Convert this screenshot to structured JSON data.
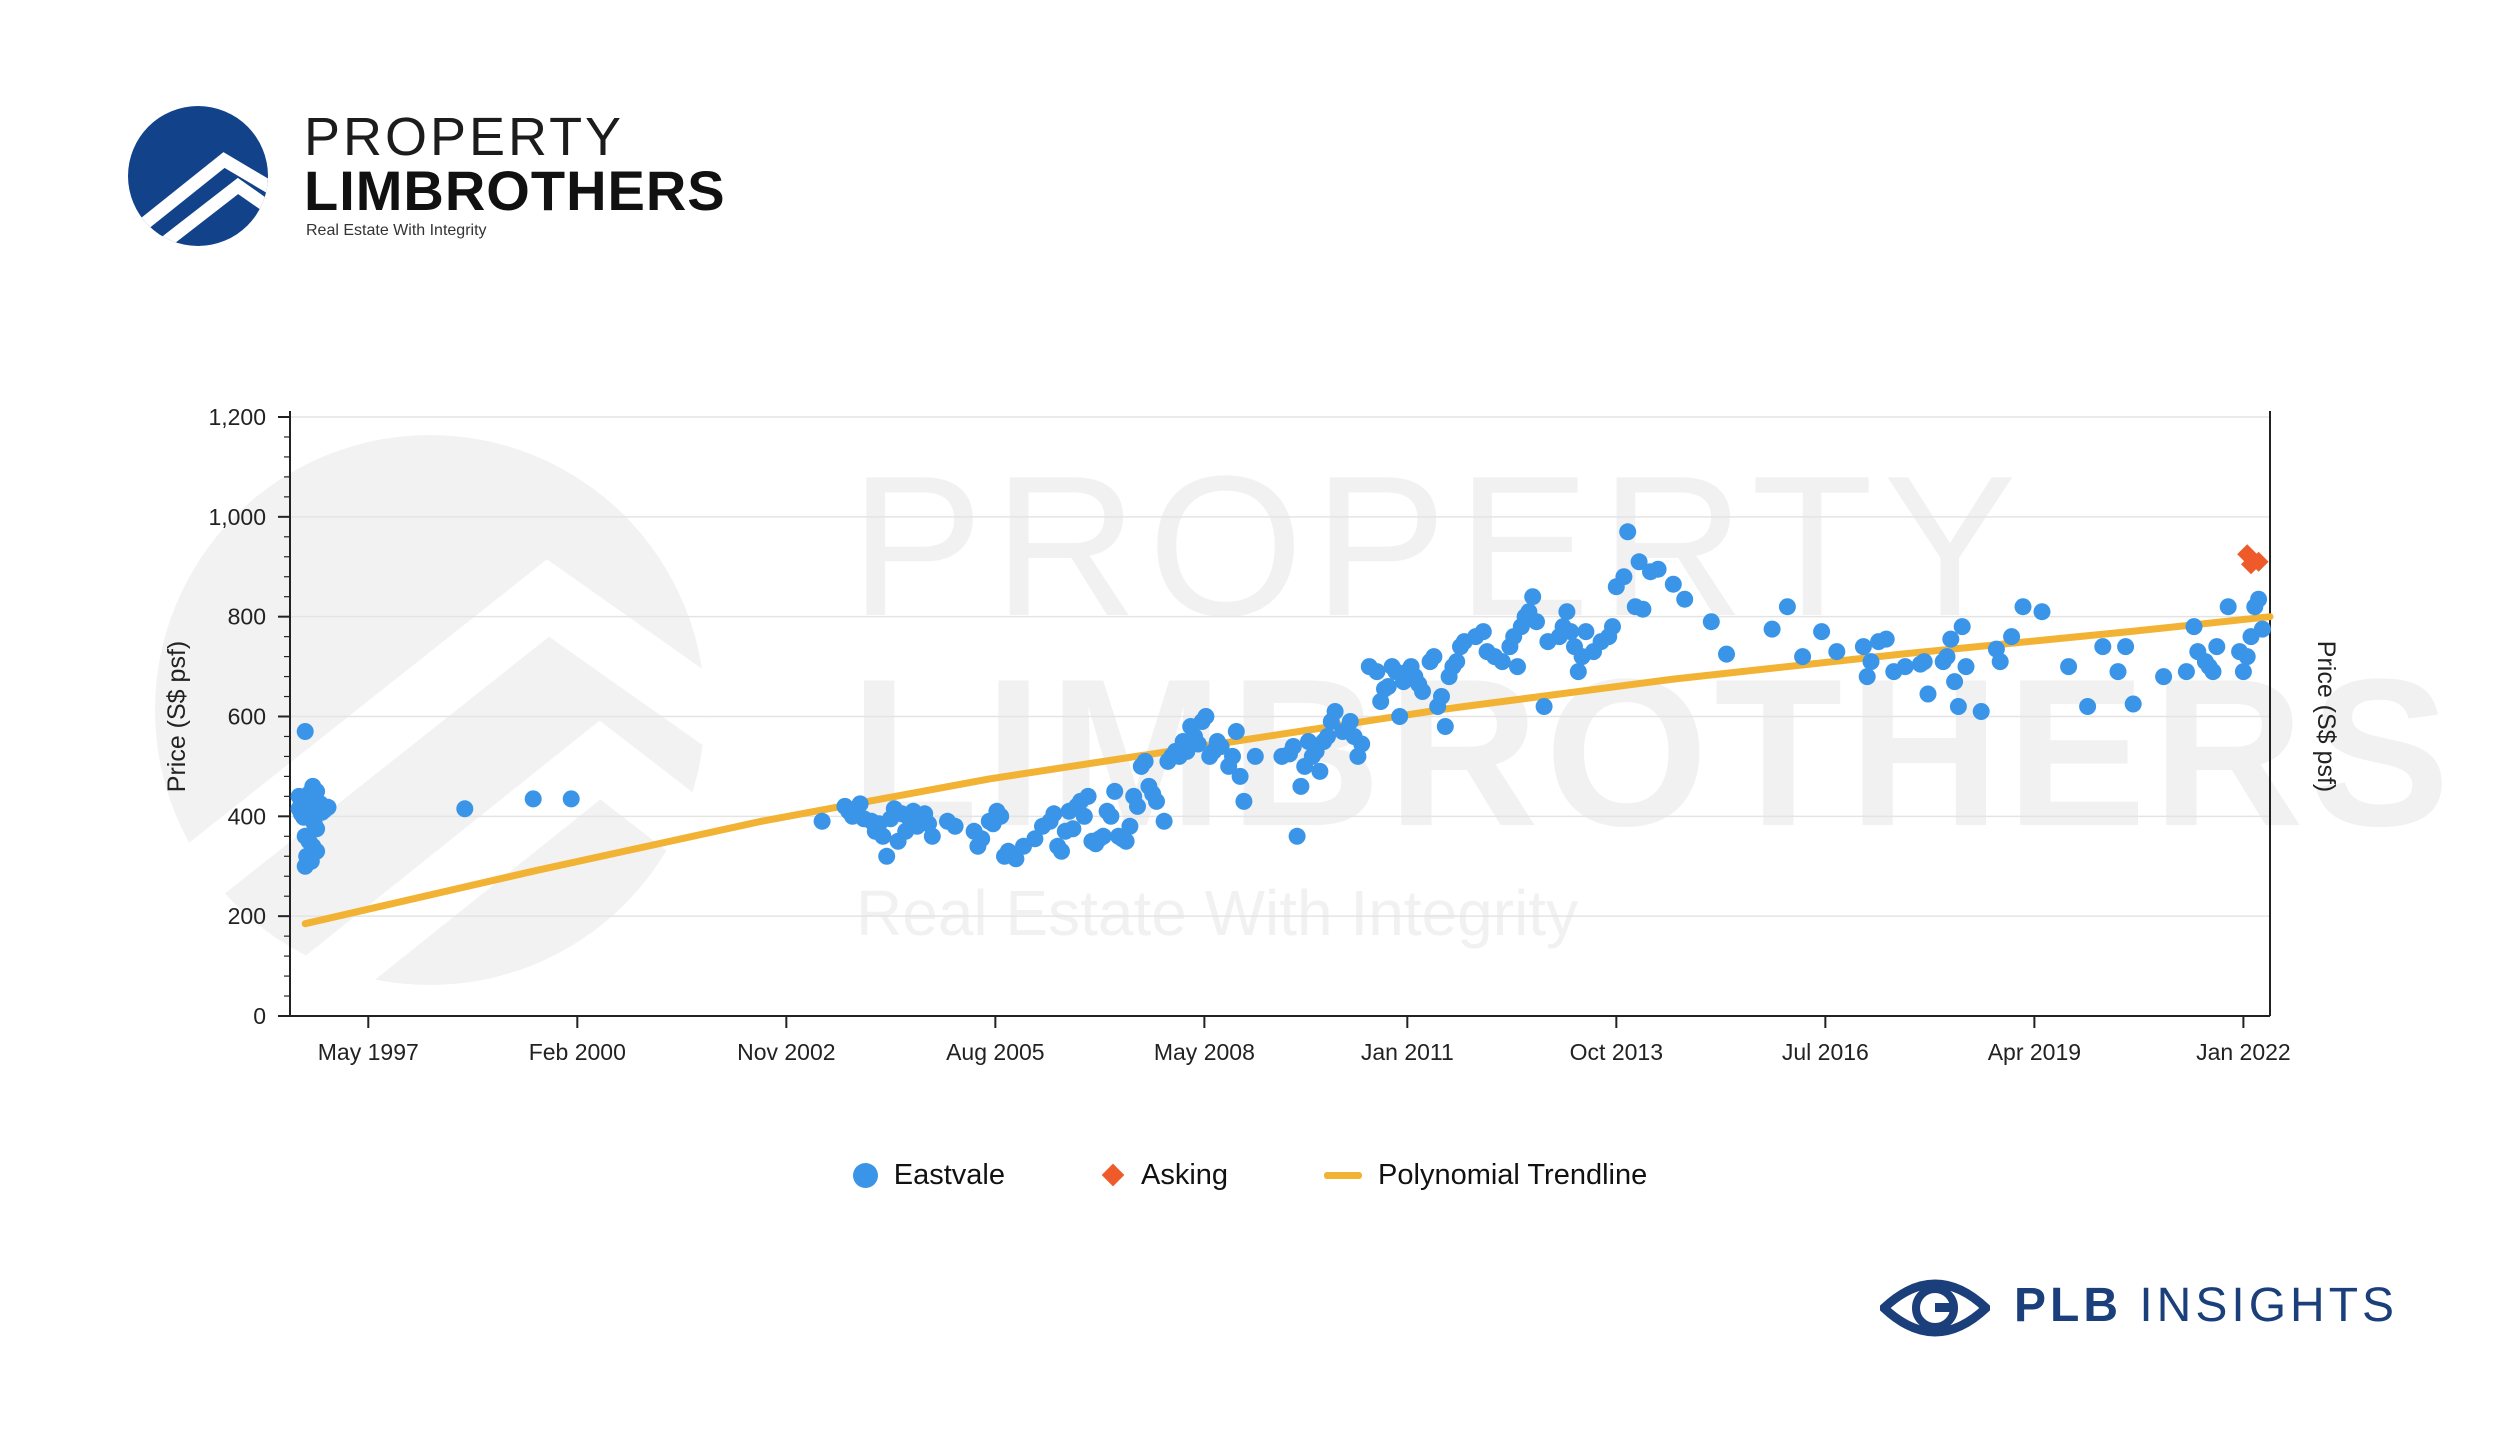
{
  "brand": {
    "line1": "PROPERTY",
    "line2": "LIMBROTHERS",
    "tagline": "Real Estate With Integrity",
    "primary_color": "#12428a"
  },
  "watermark": {
    "line1": "PROPERTY",
    "line2": "LIMBROTHERS",
    "line3": "Real Estate With Integrity"
  },
  "footer_logo": {
    "bold": "PLB",
    "rest": "INSIGHTS",
    "icon": "eye-icon",
    "color": "#1a3f7a"
  },
  "chart_data": {
    "type": "scatter",
    "title": "",
    "ylabel": "Price (S$ psf)",
    "ylabel_right": "Price (S$ psf)",
    "ylim": [
      0,
      1200
    ],
    "yticks": [
      0,
      200,
      400,
      600,
      800,
      1000,
      1200
    ],
    "ytick_labels": [
      "0",
      "200",
      "400",
      "600",
      "800",
      "1,000",
      "1,200"
    ],
    "xlim": [
      1996.3,
      2022.35
    ],
    "xtick_labels": [
      {
        "x": 1997.33,
        "label": "May 1997"
      },
      {
        "x": 2000.08,
        "label": "Feb 2000"
      },
      {
        "x": 2002.83,
        "label": "Nov 2002"
      },
      {
        "x": 2005.58,
        "label": "Aug 2005"
      },
      {
        "x": 2008.33,
        "label": "May 2008"
      },
      {
        "x": 2011.0,
        "label": "Jan 2011"
      },
      {
        "x": 2013.75,
        "label": "Oct 2013"
      },
      {
        "x": 2016.5,
        "label": "Jul 2016"
      },
      {
        "x": 2019.25,
        "label": "Apr 2019"
      },
      {
        "x": 2022.0,
        "label": "Jan 2022"
      }
    ],
    "grid": "horizontal",
    "legend_position": "bottom-center",
    "series": [
      {
        "name": "Eastvale",
        "marker": "circle",
        "color": "#3a95e8",
        "points": [
          [
            1996.5,
            570
          ],
          [
            1996.42,
            440
          ],
          [
            1996.45,
            430
          ],
          [
            1996.48,
            420
          ],
          [
            1996.52,
            410
          ],
          [
            1996.55,
            400
          ],
          [
            1996.58,
            395
          ],
          [
            1996.62,
            385
          ],
          [
            1996.65,
            375
          ],
          [
            1996.5,
            360
          ],
          [
            1996.55,
            350
          ],
          [
            1996.6,
            340
          ],
          [
            1996.65,
            330
          ],
          [
            1996.52,
            320
          ],
          [
            1996.58,
            310
          ],
          [
            1996.5,
            300
          ],
          [
            1996.45,
            405
          ],
          [
            1996.6,
            415
          ],
          [
            1996.7,
            425
          ],
          [
            1996.75,
            412
          ],
          [
            1996.8,
            418
          ],
          [
            1996.65,
            450
          ],
          [
            1996.6,
            460
          ],
          [
            1996.55,
            445
          ],
          [
            1996.48,
            398
          ],
          [
            1996.72,
            408
          ],
          [
            1996.42,
            415
          ],
          [
            1998.6,
            415
          ],
          [
            1999.5,
            435
          ],
          [
            2000.0,
            435
          ],
          [
            2003.3,
            390
          ],
          [
            2003.6,
            420
          ],
          [
            2003.65,
            410
          ],
          [
            2003.7,
            400
          ],
          [
            2003.75,
            415
          ],
          [
            2003.8,
            425
          ],
          [
            2003.85,
            395
          ],
          [
            2003.95,
            390
          ],
          [
            2004.0,
            370
          ],
          [
            2004.05,
            385
          ],
          [
            2004.1,
            360
          ],
          [
            2004.15,
            320
          ],
          [
            2004.2,
            395
          ],
          [
            2004.25,
            415
          ],
          [
            2004.3,
            350
          ],
          [
            2004.35,
            405
          ],
          [
            2004.4,
            370
          ],
          [
            2004.45,
            395
          ],
          [
            2004.5,
            410
          ],
          [
            2004.55,
            380
          ],
          [
            2004.6,
            400
          ],
          [
            2004.65,
            405
          ],
          [
            2004.7,
            385
          ],
          [
            2004.75,
            360
          ],
          [
            2004.95,
            390
          ],
          [
            2005.05,
            380
          ],
          [
            2005.3,
            370
          ],
          [
            2005.35,
            340
          ],
          [
            2005.4,
            355
          ],
          [
            2005.5,
            390
          ],
          [
            2005.55,
            385
          ],
          [
            2005.6,
            410
          ],
          [
            2005.65,
            400
          ],
          [
            2005.7,
            320
          ],
          [
            2005.75,
            330
          ],
          [
            2005.85,
            315
          ],
          [
            2005.95,
            340
          ],
          [
            2006.1,
            355
          ],
          [
            2006.2,
            380
          ],
          [
            2006.3,
            390
          ],
          [
            2006.35,
            405
          ],
          [
            2006.4,
            340
          ],
          [
            2006.45,
            330
          ],
          [
            2006.5,
            370
          ],
          [
            2006.55,
            410
          ],
          [
            2006.6,
            375
          ],
          [
            2006.65,
            420
          ],
          [
            2006.7,
            430
          ],
          [
            2006.75,
            400
          ],
          [
            2006.8,
            440
          ],
          [
            2006.85,
            350
          ],
          [
            2006.9,
            345
          ],
          [
            2006.95,
            355
          ],
          [
            2007.0,
            360
          ],
          [
            2007.05,
            410
          ],
          [
            2007.1,
            400
          ],
          [
            2007.15,
            450
          ],
          [
            2007.2,
            360
          ],
          [
            2007.25,
            355
          ],
          [
            2007.3,
            350
          ],
          [
            2007.35,
            380
          ],
          [
            2007.4,
            440
          ],
          [
            2007.45,
            420
          ],
          [
            2007.5,
            500
          ],
          [
            2007.55,
            510
          ],
          [
            2007.6,
            460
          ],
          [
            2007.65,
            445
          ],
          [
            2007.7,
            430
          ],
          [
            2007.8,
            390
          ],
          [
            2007.85,
            510
          ],
          [
            2007.9,
            520
          ],
          [
            2007.95,
            530
          ],
          [
            2008.0,
            520
          ],
          [
            2008.05,
            550
          ],
          [
            2008.1,
            530
          ],
          [
            2008.15,
            580
          ],
          [
            2008.2,
            560
          ],
          [
            2008.25,
            545
          ],
          [
            2008.3,
            590
          ],
          [
            2008.35,
            600
          ],
          [
            2008.4,
            520
          ],
          [
            2008.45,
            530
          ],
          [
            2008.5,
            550
          ],
          [
            2008.55,
            540
          ],
          [
            2008.65,
            500
          ],
          [
            2008.7,
            520
          ],
          [
            2008.75,
            570
          ],
          [
            2008.8,
            480
          ],
          [
            2008.85,
            430
          ],
          [
            2009.0,
            520
          ],
          [
            2009.35,
            520
          ],
          [
            2009.45,
            525
          ],
          [
            2009.5,
            540
          ],
          [
            2009.55,
            360
          ],
          [
            2009.6,
            460
          ],
          [
            2009.65,
            500
          ],
          [
            2009.7,
            550
          ],
          [
            2009.75,
            520
          ],
          [
            2009.8,
            530
          ],
          [
            2009.85,
            490
          ],
          [
            2009.9,
            550
          ],
          [
            2009.95,
            560
          ],
          [
            2010.0,
            590
          ],
          [
            2010.05,
            610
          ],
          [
            2010.15,
            570
          ],
          [
            2010.25,
            590
          ],
          [
            2010.3,
            560
          ],
          [
            2010.35,
            520
          ],
          [
            2010.4,
            545
          ],
          [
            2010.5,
            700
          ],
          [
            2010.6,
            690
          ],
          [
            2010.65,
            630
          ],
          [
            2010.7,
            655
          ],
          [
            2010.75,
            660
          ],
          [
            2010.8,
            700
          ],
          [
            2010.85,
            690
          ],
          [
            2010.9,
            600
          ],
          [
            2010.95,
            670
          ],
          [
            2011.0,
            690
          ],
          [
            2011.05,
            700
          ],
          [
            2011.1,
            680
          ],
          [
            2011.15,
            665
          ],
          [
            2011.2,
            650
          ],
          [
            2011.3,
            710
          ],
          [
            2011.35,
            720
          ],
          [
            2011.4,
            620
          ],
          [
            2011.45,
            640
          ],
          [
            2011.5,
            580
          ],
          [
            2011.55,
            680
          ],
          [
            2011.6,
            700
          ],
          [
            2011.65,
            710
          ],
          [
            2011.7,
            740
          ],
          [
            2011.75,
            750
          ],
          [
            2011.9,
            760
          ],
          [
            2012.0,
            770
          ],
          [
            2012.05,
            730
          ],
          [
            2012.15,
            720
          ],
          [
            2012.25,
            710
          ],
          [
            2012.35,
            740
          ],
          [
            2012.4,
            760
          ],
          [
            2012.45,
            700
          ],
          [
            2012.5,
            780
          ],
          [
            2012.55,
            800
          ],
          [
            2012.6,
            810
          ],
          [
            2012.65,
            840
          ],
          [
            2012.7,
            790
          ],
          [
            2012.8,
            620
          ],
          [
            2012.85,
            750
          ],
          [
            2013.0,
            760
          ],
          [
            2013.05,
            780
          ],
          [
            2013.1,
            810
          ],
          [
            2013.15,
            770
          ],
          [
            2013.2,
            740
          ],
          [
            2013.25,
            690
          ],
          [
            2013.3,
            720
          ],
          [
            2013.35,
            770
          ],
          [
            2013.45,
            730
          ],
          [
            2013.55,
            750
          ],
          [
            2013.65,
            760
          ],
          [
            2013.7,
            780
          ],
          [
            2013.75,
            860
          ],
          [
            2013.85,
            880
          ],
          [
            2013.9,
            970
          ],
          [
            2014.0,
            820
          ],
          [
            2014.05,
            910
          ],
          [
            2014.1,
            815
          ],
          [
            2014.2,
            890
          ],
          [
            2014.3,
            895
          ],
          [
            2014.5,
            865
          ],
          [
            2014.65,
            835
          ],
          [
            2015.0,
            790
          ],
          [
            2015.2,
            725
          ],
          [
            2015.8,
            775
          ],
          [
            2016.0,
            820
          ],
          [
            2016.2,
            720
          ],
          [
            2016.45,
            770
          ],
          [
            2016.65,
            730
          ],
          [
            2017.0,
            740
          ],
          [
            2017.05,
            680
          ],
          [
            2017.1,
            710
          ],
          [
            2017.2,
            750
          ],
          [
            2017.3,
            755
          ],
          [
            2017.4,
            690
          ],
          [
            2017.55,
            700
          ],
          [
            2017.75,
            705
          ],
          [
            2017.8,
            710
          ],
          [
            2017.85,
            645
          ],
          [
            2018.05,
            710
          ],
          [
            2018.1,
            720
          ],
          [
            2018.15,
            755
          ],
          [
            2018.2,
            670
          ],
          [
            2018.25,
            620
          ],
          [
            2018.3,
            780
          ],
          [
            2018.35,
            700
          ],
          [
            2018.55,
            610
          ],
          [
            2018.75,
            735
          ],
          [
            2018.8,
            710
          ],
          [
            2018.95,
            760
          ],
          [
            2019.1,
            820
          ],
          [
            2019.35,
            810
          ],
          [
            2019.7,
            700
          ],
          [
            2019.95,
            620
          ],
          [
            2020.15,
            740
          ],
          [
            2020.35,
            690
          ],
          [
            2020.45,
            740
          ],
          [
            2020.55,
            625
          ],
          [
            2020.95,
            680
          ],
          [
            2021.25,
            690
          ],
          [
            2021.35,
            780
          ],
          [
            2021.4,
            730
          ],
          [
            2021.5,
            710
          ],
          [
            2021.55,
            700
          ],
          [
            2021.6,
            690
          ],
          [
            2021.65,
            740
          ],
          [
            2021.8,
            820
          ],
          [
            2021.95,
            730
          ],
          [
            2022.0,
            690
          ],
          [
            2022.05,
            720
          ],
          [
            2022.1,
            760
          ],
          [
            2022.15,
            820
          ],
          [
            2022.2,
            835
          ],
          [
            2022.25,
            775
          ]
        ]
      },
      {
        "name": "Asking",
        "marker": "diamond",
        "color": "#ef5a2a",
        "points": [
          [
            2022.05,
            925
          ],
          [
            2022.1,
            905
          ],
          [
            2022.2,
            910
          ]
        ]
      },
      {
        "name": "Polynomial Trendline",
        "marker": "line",
        "color": "#f2b233",
        "points": [
          [
            1996.5,
            185
          ],
          [
            1999.5,
            290
          ],
          [
            2002.5,
            390
          ],
          [
            2005.5,
            475
          ],
          [
            2008.5,
            545
          ],
          [
            2011.5,
            615
          ],
          [
            2014.5,
            675
          ],
          [
            2017.5,
            725
          ],
          [
            2020.5,
            770
          ],
          [
            2022.35,
            800
          ]
        ]
      }
    ]
  }
}
